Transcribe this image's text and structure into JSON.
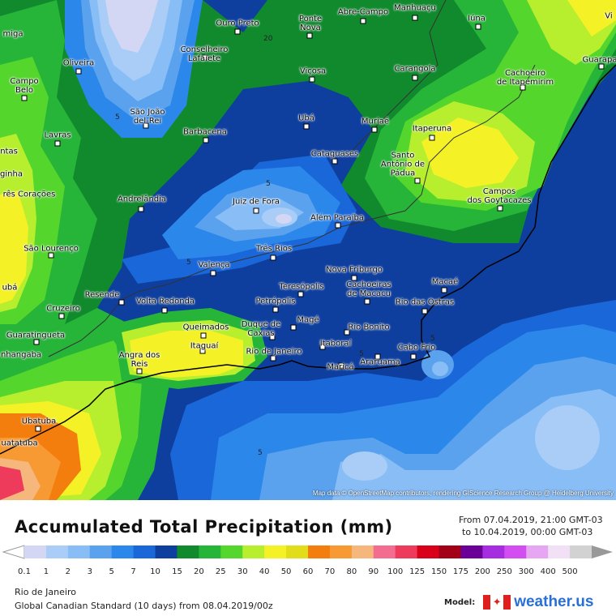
{
  "map": {
    "attribution": "Map data © OpenStreetMap contributors, rendering GIScience Research Group @ Heidelberg University",
    "contour_labels": [
      "20",
      "5",
      "5",
      "5",
      "5",
      "5",
      "5"
    ],
    "cities": [
      {
        "name": "Abre-Campo"
      },
      {
        "name": "Manhuaçu"
      },
      {
        "name": "Iúna"
      },
      {
        "name": "Ouro Preto"
      },
      {
        "name": "Ponte\nNova"
      },
      {
        "name": "miga"
      },
      {
        "name": "Conselheiro\nLafaiete"
      },
      {
        "name": "Oliveira"
      },
      {
        "name": "Viçosa"
      },
      {
        "name": "Carangola"
      },
      {
        "name": "Cachoeiro\nde Itapemirim"
      },
      {
        "name": "Guarapa"
      },
      {
        "name": "Campo\nBelo"
      },
      {
        "name": "São João\ndel-Rei"
      },
      {
        "name": "Ubá"
      },
      {
        "name": "Muriaé"
      },
      {
        "name": "Itaperuna"
      },
      {
        "name": "Barbacena"
      },
      {
        "name": "Lavras"
      },
      {
        "name": "ntas"
      },
      {
        "name": "Cataguases"
      },
      {
        "name": "Santo\nAntônio de\nPádua"
      },
      {
        "name": "ginha"
      },
      {
        "name": "Campos\ndos Goytacazes"
      },
      {
        "name": "rês Corações"
      },
      {
        "name": "Andrelândia"
      },
      {
        "name": "Juiz de Fora"
      },
      {
        "name": "Além Paraíba"
      },
      {
        "name": "São Lourenço"
      },
      {
        "name": "Três Rios"
      },
      {
        "name": "Valença"
      },
      {
        "name": "Nova Friburgo"
      },
      {
        "name": "Macaé"
      },
      {
        "name": "ubá"
      },
      {
        "name": "Resende"
      },
      {
        "name": "Teresópolis"
      },
      {
        "name": "Cachoeiras\nde Macacu"
      },
      {
        "name": "Volta Redonda"
      },
      {
        "name": "Petrópolis"
      },
      {
        "name": "Rio das Ostras"
      },
      {
        "name": "Cruzeiro"
      },
      {
        "name": "Magé"
      },
      {
        "name": "Queimados"
      },
      {
        "name": "Duque de\nCaxias"
      },
      {
        "name": "Rio Bonito"
      },
      {
        "name": "Guaratingueta"
      },
      {
        "name": "Itaboraí"
      },
      {
        "name": "nhangaba"
      },
      {
        "name": "Itaguaí"
      },
      {
        "name": "Rio de Janeiro"
      },
      {
        "name": "Cabo Frio"
      },
      {
        "name": "Angra dos\nReis"
      },
      {
        "name": "Araruama"
      },
      {
        "name": "Maricá"
      },
      {
        "name": "Ubatuba"
      },
      {
        "name": "uatatuba"
      },
      {
        "name": "Vi"
      }
    ]
  },
  "header": {
    "title": "Accumulated Total Precipitation (mm)",
    "from_label": "From 07.04.2019, 21:00 GMT-03",
    "to_label": "to 10.04.2019, 00:00 GMT-03"
  },
  "legend": {
    "labels": [
      "0.1",
      "1",
      "2",
      "3",
      "5",
      "7",
      "10",
      "15",
      "20",
      "25",
      "30",
      "40",
      "50",
      "60",
      "70",
      "80",
      "90",
      "100",
      "125",
      "150",
      "175",
      "200",
      "250",
      "300",
      "400",
      "500"
    ],
    "colors": [
      "#d3d7f4",
      "#a9cdf7",
      "#88bdf6",
      "#5aa2ee",
      "#2c87ea",
      "#1a67d9",
      "#0f3f9e",
      "#118a2e",
      "#26b439",
      "#54d62c",
      "#b7ee2e",
      "#f4f226",
      "#e1dd1a",
      "#f37d0d",
      "#f79a33",
      "#f6b77d",
      "#f26d8f",
      "#ee3b5c",
      "#d9001a",
      "#a30017",
      "#6a0098",
      "#a72ee0",
      "#d34ef0",
      "#e7a6f2",
      "#f2e0f6",
      "#d2d2d2"
    ]
  },
  "footer": {
    "region": "Rio de Janeiro",
    "model_run": "Global Canadian Standard (10 days) from 08.04.2019/00z",
    "model_label": "Model:",
    "brand": "weather.us"
  }
}
